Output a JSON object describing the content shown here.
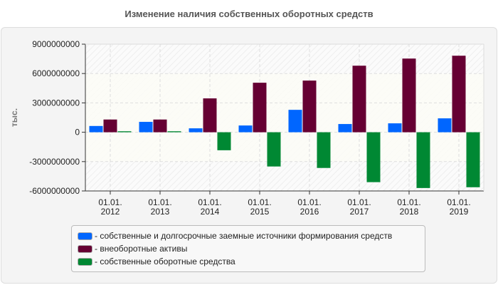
{
  "chart_data": {
    "type": "bar",
    "title": "Изменение наличия собственных оборотных средств",
    "ylabel": "тыс.",
    "xlabel": "",
    "ylim": [
      -6000000000,
      9000000000
    ],
    "yticks": [
      9000000000,
      6000000000,
      3000000000,
      0,
      -3000000000,
      -6000000000
    ],
    "ytick_labels": [
      "9000000000",
      "6000000000",
      "3000000000",
      "0",
      "-3000000000",
      "-6000000000"
    ],
    "grid": true,
    "legend_position": "bottom",
    "categories": [
      [
        "01.01.",
        "2012"
      ],
      [
        "01.01.",
        "2013"
      ],
      [
        "01.01.",
        "2014"
      ],
      [
        "01.01.",
        "2015"
      ],
      [
        "01.01.",
        "2016"
      ],
      [
        "01.01.",
        "2017"
      ],
      [
        "01.01.",
        "2018"
      ],
      [
        "01.01.",
        "2019"
      ]
    ],
    "series": [
      {
        "name": "- собственные и долгосрочные заемные источники формирования средств",
        "color": "#0066ff",
        "values": [
          640000000,
          1060000000,
          400000000,
          690000000,
          2290000000,
          840000000,
          910000000,
          1420000000
        ]
      },
      {
        "name": "- внеоборотные активы",
        "color": "#660033",
        "values": [
          1300000000,
          1300000000,
          3460000000,
          5060000000,
          5280000000,
          6800000000,
          7530000000,
          7820000000
        ]
      },
      {
        "name": "- собственные оборотные средства",
        "color": "#008833",
        "values": [
          100000000,
          100000000,
          -1840000000,
          -3500000000,
          -3650000000,
          -5100000000,
          -5700000000,
          -5620000000
        ]
      }
    ]
  }
}
